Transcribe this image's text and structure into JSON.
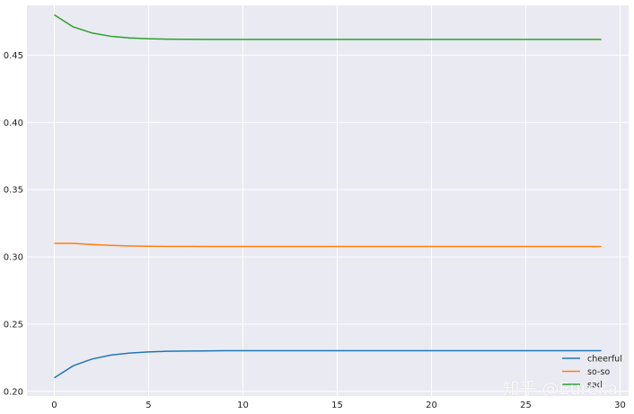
{
  "chart_data": {
    "type": "line",
    "title": "",
    "xlabel": "",
    "ylabel": "",
    "xlim": [
      -1.45,
      30.45
    ],
    "ylim": [
      0.1965,
      0.487
    ],
    "xticks": [
      0,
      5,
      10,
      15,
      20,
      25,
      30
    ],
    "yticks": [
      0.2,
      0.25,
      0.3,
      0.35,
      0.4,
      0.45
    ],
    "ytick_labels": [
      "0.20",
      "0.25",
      "0.30",
      "0.35",
      "0.40",
      "0.45"
    ],
    "grid": true,
    "legend_position": "bottom-right",
    "x": [
      0,
      1,
      2,
      3,
      4,
      5,
      6,
      7,
      8,
      9,
      10,
      11,
      12,
      13,
      14,
      15,
      16,
      17,
      18,
      19,
      20,
      21,
      22,
      23,
      24,
      25,
      26,
      27,
      28,
      29
    ],
    "series": [
      {
        "name": "cheerful",
        "color": "#1f77b4",
        "values": [
          0.21,
          0.219,
          0.224,
          0.227,
          0.2285,
          0.2293,
          0.2298,
          0.23,
          0.2301,
          0.2302,
          0.2302,
          0.2302,
          0.2302,
          0.2302,
          0.2302,
          0.2302,
          0.2302,
          0.2302,
          0.2302,
          0.2302,
          0.2302,
          0.2302,
          0.2302,
          0.2302,
          0.2302,
          0.2302,
          0.2302,
          0.2302,
          0.2302,
          0.2302
        ]
      },
      {
        "name": "so-so",
        "color": "#ff7f0e",
        "values": [
          0.31,
          0.31,
          0.3092,
          0.3085,
          0.3081,
          0.3079,
          0.3078,
          0.3078,
          0.3077,
          0.3077,
          0.3077,
          0.3077,
          0.3077,
          0.3077,
          0.3077,
          0.3077,
          0.3077,
          0.3077,
          0.3077,
          0.3077,
          0.3077,
          0.3077,
          0.3077,
          0.3077,
          0.3077,
          0.3077,
          0.3077,
          0.3077,
          0.3077,
          0.3077
        ]
      },
      {
        "name": "sad",
        "color": "#2ca02c",
        "values": [
          0.48,
          0.471,
          0.4665,
          0.464,
          0.4628,
          0.4622,
          0.4619,
          0.4618,
          0.4617,
          0.4617,
          0.4617,
          0.4617,
          0.4617,
          0.4617,
          0.4617,
          0.4617,
          0.4617,
          0.4617,
          0.4617,
          0.4617,
          0.4617,
          0.4617,
          0.4617,
          0.4617,
          0.4617,
          0.4617,
          0.4617,
          0.4617,
          0.4617,
          0.4617
        ]
      }
    ]
  },
  "watermark": "知乎 @Eureka",
  "colors": {
    "plot_background": "#eaeaf2",
    "grid": "#ffffff",
    "page_background": "#ffffff"
  }
}
